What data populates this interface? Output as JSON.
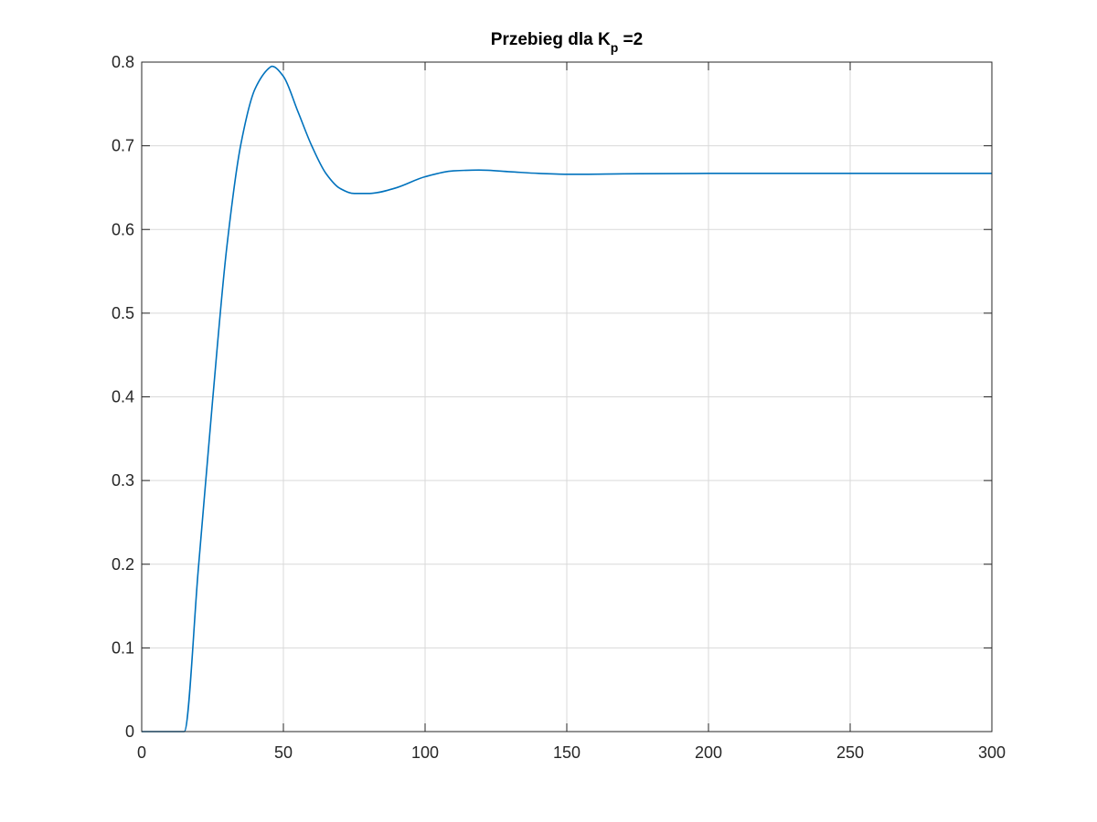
{
  "chart_data": {
    "type": "line",
    "title": {
      "main": "Przebieg dla K",
      "subscript": "p",
      "suffix": " =2"
    },
    "xlabel": "",
    "ylabel": "",
    "xlim": [
      0,
      300
    ],
    "ylim": [
      0,
      0.8
    ],
    "grid": true,
    "x_ticks": [
      "0",
      "50",
      "100",
      "150",
      "200",
      "250",
      "300"
    ],
    "y_ticks": [
      "0",
      "0.1",
      "0.2",
      "0.3",
      "0.4",
      "0.5",
      "0.6",
      "0.7",
      "0.8"
    ],
    "colors": {
      "line": "#0072BD",
      "grid": "#d9d9d9",
      "axes": "#262626"
    },
    "series": [
      {
        "x": [
          0,
          15,
          20,
          25,
          30,
          35,
          40,
          45,
          46,
          50,
          55,
          60,
          65,
          70,
          75,
          80,
          83,
          90,
          100,
          110,
          119,
          130,
          140,
          150,
          155,
          170,
          200,
          250,
          300
        ],
        "y": [
          0,
          0,
          0.195,
          0.395,
          0.578,
          0.702,
          0.768,
          0.793,
          0.795,
          0.783,
          0.742,
          0.7,
          0.667,
          0.649,
          0.643,
          0.643,
          0.644,
          0.65,
          0.663,
          0.67,
          0.671,
          0.669,
          0.667,
          0.666,
          0.666,
          0.6665,
          0.667,
          0.667,
          0.667
        ]
      }
    ]
  }
}
